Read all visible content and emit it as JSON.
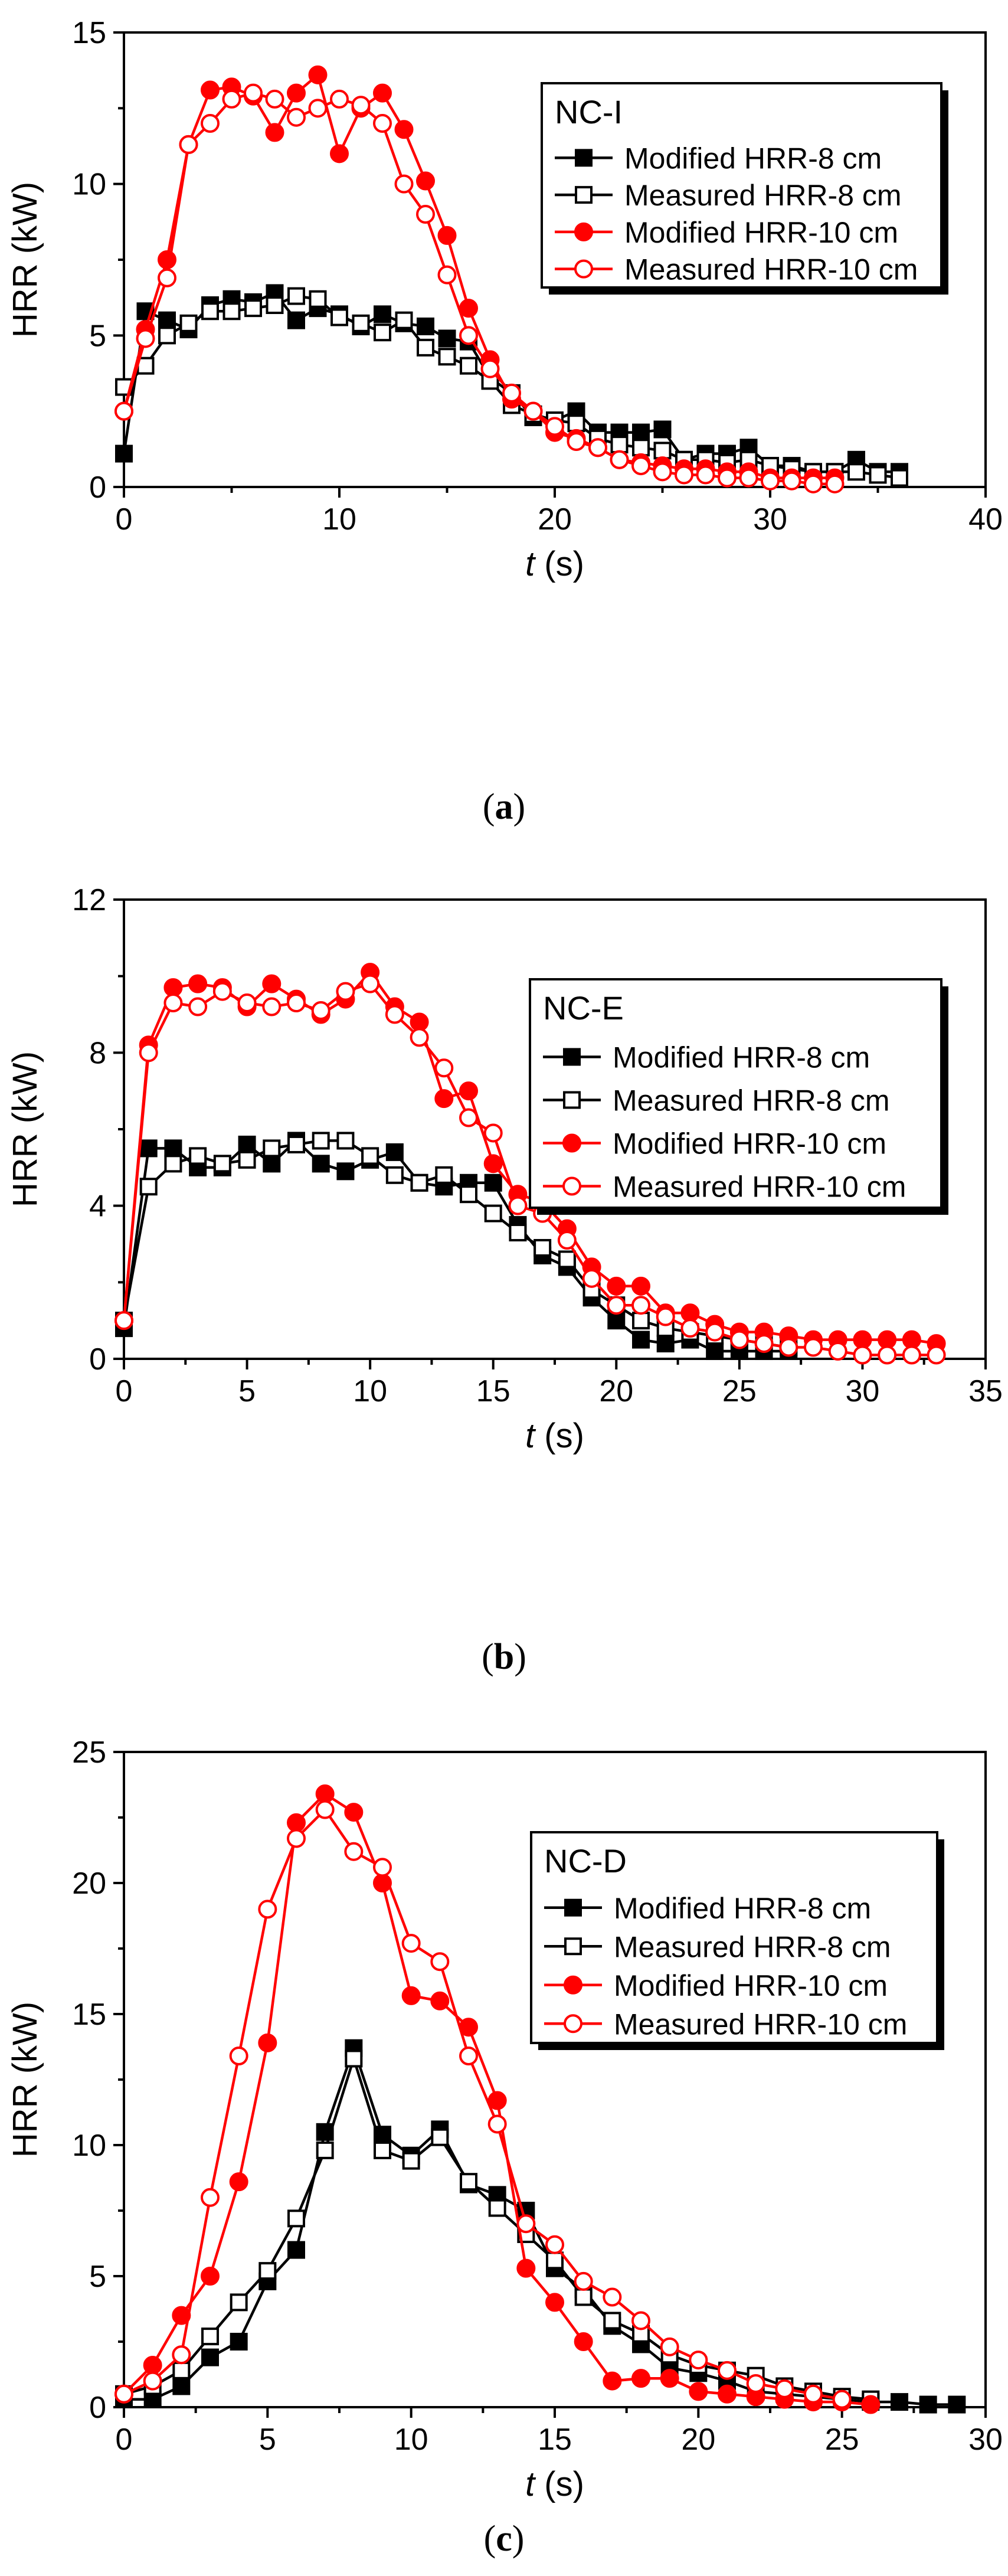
{
  "colors": {
    "black": "#000000",
    "red": "#ff0000"
  },
  "chart_data": [
    {
      "type": "line",
      "panel_label": "a",
      "legend_title": "NC-I",
      "legend_position": "top-right",
      "xlabel_var": "t",
      "xlabel_unit": " (s)",
      "ylabel": "HRR (kW)",
      "xlim": [
        0,
        40
      ],
      "ylim": [
        0,
        15
      ],
      "xticks": [
        0,
        10,
        20,
        30,
        40
      ],
      "yticks": [
        0,
        5,
        10,
        15
      ],
      "grid": false,
      "series": [
        {
          "name": "Modified HRR-8 cm",
          "color": "#000000",
          "marker": "square-filled",
          "x": [
            0,
            1,
            2,
            3,
            4,
            5,
            6,
            7,
            8,
            9,
            10,
            11,
            12,
            13,
            14,
            15,
            16,
            17,
            18,
            19,
            20,
            21,
            22,
            23,
            24,
            25,
            26,
            27,
            28,
            29,
            30,
            31,
            32,
            33,
            34,
            35,
            36
          ],
          "y": [
            1.1,
            5.8,
            5.5,
            5.2,
            6.0,
            6.2,
            6.1,
            6.4,
            5.5,
            5.9,
            5.7,
            5.3,
            5.7,
            5.4,
            5.3,
            4.9,
            4.8,
            3.6,
            3.1,
            2.3,
            2.2,
            2.5,
            1.8,
            1.8,
            1.8,
            1.9,
            0.9,
            1.1,
            1.1,
            1.3,
            0.7,
            0.7,
            0.5,
            0.5,
            0.9,
            0.5,
            0.5
          ]
        },
        {
          "name": "Measured HRR-8 cm",
          "color": "#000000",
          "marker": "square-open",
          "x": [
            0,
            1,
            2,
            3,
            4,
            5,
            6,
            7,
            8,
            9,
            10,
            11,
            12,
            13,
            14,
            15,
            16,
            17,
            18,
            19,
            20,
            21,
            22,
            23,
            24,
            25,
            26,
            27,
            28,
            29,
            30,
            31,
            32,
            33,
            34,
            35,
            36
          ],
          "y": [
            3.3,
            4.0,
            5.0,
            5.4,
            5.8,
            5.8,
            5.9,
            6.0,
            6.3,
            6.2,
            5.6,
            5.4,
            5.1,
            5.5,
            4.6,
            4.3,
            4.0,
            3.5,
            2.7,
            2.4,
            2.2,
            2.1,
            1.6,
            1.4,
            1.3,
            1.2,
            0.9,
            0.9,
            0.8,
            0.9,
            0.7,
            0.6,
            0.5,
            0.5,
            0.5,
            0.4,
            0.3
          ]
        },
        {
          "name": "Modified HRR-10 cm",
          "color": "#ff0000",
          "marker": "circle-filled",
          "x": [
            0,
            1,
            2,
            3,
            4,
            5,
            6,
            7,
            8,
            9,
            10,
            11,
            12,
            13,
            14,
            15,
            16,
            17,
            18,
            19,
            20,
            21,
            22,
            23,
            24,
            25,
            26,
            27,
            28,
            29,
            30,
            31,
            32,
            33
          ],
          "y": [
            2.5,
            5.2,
            7.5,
            11.3,
            13.1,
            13.2,
            12.9,
            11.7,
            13.0,
            13.6,
            11.0,
            12.5,
            13.0,
            11.8,
            10.1,
            8.3,
            5.9,
            4.2,
            2.9,
            2.5,
            1.8,
            1.6,
            1.3,
            0.9,
            0.8,
            0.7,
            0.6,
            0.6,
            0.5,
            0.5,
            0.3,
            0.3,
            0.3,
            0.3
          ]
        },
        {
          "name": "Measured HRR-10 cm",
          "color": "#ff0000",
          "marker": "circle-open",
          "x": [
            0,
            1,
            2,
            3,
            4,
            5,
            6,
            7,
            8,
            9,
            10,
            11,
            12,
            13,
            14,
            15,
            16,
            17,
            18,
            19,
            20,
            21,
            22,
            23,
            24,
            25,
            26,
            27,
            28,
            29,
            30,
            31,
            32,
            33
          ],
          "y": [
            2.5,
            4.9,
            6.9,
            11.3,
            12.0,
            12.8,
            13.0,
            12.8,
            12.2,
            12.5,
            12.8,
            12.6,
            12.0,
            10.0,
            9.0,
            7.0,
            5.0,
            3.9,
            3.1,
            2.5,
            2.0,
            1.5,
            1.3,
            0.9,
            0.7,
            0.5,
            0.4,
            0.4,
            0.3,
            0.3,
            0.2,
            0.2,
            0.1,
            0.1
          ]
        }
      ]
    },
    {
      "type": "line",
      "panel_label": "b",
      "legend_title": "NC-E",
      "legend_position": "top-right",
      "xlabel_var": "t",
      "xlabel_unit": " (s)",
      "ylabel": "HRR (kW)",
      "xlim": [
        0,
        35
      ],
      "ylim": [
        0,
        12
      ],
      "xticks": [
        0,
        5,
        10,
        15,
        20,
        25,
        30,
        35
      ],
      "yticks": [
        0,
        4,
        8,
        12
      ],
      "grid": false,
      "series": [
        {
          "name": "Modified HRR-8 cm",
          "color": "#000000",
          "marker": "square-filled",
          "x": [
            0,
            1,
            2,
            3,
            4,
            5,
            6,
            7,
            8,
            9,
            10,
            11,
            12,
            13,
            14,
            15,
            16,
            17,
            18,
            19,
            20,
            21,
            22,
            23,
            24,
            25,
            26,
            27
          ],
          "y": [
            0.8,
            5.5,
            5.5,
            5.0,
            5.0,
            5.6,
            5.1,
            5.7,
            5.1,
            4.9,
            5.2,
            5.4,
            4.6,
            4.5,
            4.6,
            4.6,
            3.5,
            2.7,
            2.4,
            1.6,
            1.0,
            0.5,
            0.4,
            0.5,
            0.2,
            0.2,
            0.2,
            0.2
          ]
        },
        {
          "name": "Measured HRR-8 cm",
          "color": "#000000",
          "marker": "square-open",
          "x": [
            0,
            1,
            2,
            3,
            4,
            5,
            6,
            7,
            8,
            9,
            10,
            11,
            12,
            13,
            14,
            15,
            16,
            17,
            18,
            19,
            20,
            21,
            22,
            23,
            24,
            25,
            26,
            27
          ],
          "y": [
            1.0,
            4.5,
            5.1,
            5.3,
            5.1,
            5.2,
            5.5,
            5.6,
            5.7,
            5.7,
            5.3,
            4.8,
            4.6,
            4.8,
            4.3,
            3.8,
            3.3,
            2.9,
            2.6,
            1.8,
            1.4,
            1.0,
            0.8,
            0.7,
            0.6,
            0.5,
            0.4,
            0.3
          ]
        },
        {
          "name": "Modified HRR-10 cm",
          "color": "#ff0000",
          "marker": "circle-filled",
          "x": [
            0,
            1,
            2,
            3,
            4,
            5,
            6,
            7,
            8,
            9,
            10,
            11,
            12,
            13,
            14,
            15,
            16,
            17,
            18,
            19,
            20,
            21,
            22,
            23,
            24,
            25,
            26,
            27,
            28,
            29,
            30,
            31,
            32,
            33
          ],
          "y": [
            1.0,
            8.2,
            9.7,
            9.8,
            9.7,
            9.2,
            9.8,
            9.4,
            9.0,
            9.4,
            10.1,
            9.2,
            8.8,
            6.8,
            7.0,
            5.1,
            4.3,
            4.1,
            3.4,
            2.4,
            1.9,
            1.9,
            1.2,
            1.2,
            0.9,
            0.7,
            0.7,
            0.6,
            0.5,
            0.5,
            0.5,
            0.5,
            0.5,
            0.4
          ]
        },
        {
          "name": "Measured HRR-10 cm",
          "color": "#ff0000",
          "marker": "circle-open",
          "x": [
            0,
            1,
            2,
            3,
            4,
            5,
            6,
            7,
            8,
            9,
            10,
            11,
            12,
            13,
            14,
            15,
            16,
            17,
            18,
            19,
            20,
            21,
            22,
            23,
            24,
            25,
            26,
            27,
            28,
            29,
            30,
            31,
            32,
            33
          ],
          "y": [
            1.0,
            8.0,
            9.3,
            9.2,
            9.6,
            9.3,
            9.2,
            9.3,
            9.1,
            9.6,
            9.8,
            9.0,
            8.4,
            7.6,
            6.3,
            5.9,
            4.0,
            3.8,
            3.1,
            2.1,
            1.4,
            1.4,
            1.1,
            0.8,
            0.7,
            0.5,
            0.4,
            0.3,
            0.3,
            0.2,
            0.1,
            0.1,
            0.1,
            0.1
          ]
        }
      ]
    },
    {
      "type": "line",
      "panel_label": "c",
      "legend_title": "NC-D",
      "legend_position": "top-right",
      "xlabel_var": "t",
      "xlabel_unit": " (s)",
      "ylabel": "HRR (kW)",
      "xlim": [
        0,
        30
      ],
      "ylim": [
        0,
        25
      ],
      "xticks": [
        0,
        5,
        10,
        15,
        20,
        25,
        30
      ],
      "yticks": [
        0,
        5,
        10,
        15,
        20,
        25
      ],
      "grid": false,
      "series": [
        {
          "name": "Modified HRR-8 cm",
          "color": "#000000",
          "marker": "square-filled",
          "x": [
            0,
            1,
            2,
            3,
            4,
            5,
            6,
            7,
            8,
            9,
            10,
            11,
            12,
            13,
            14,
            15,
            16,
            17,
            18,
            19,
            20,
            21,
            22,
            23,
            24,
            25,
            26,
            27,
            28,
            29
          ],
          "y": [
            0.3,
            0.3,
            0.8,
            1.9,
            2.5,
            4.8,
            6.0,
            10.5,
            13.7,
            10.4,
            9.6,
            10.6,
            8.5,
            8.1,
            7.5,
            5.3,
            4.5,
            3.1,
            2.4,
            1.5,
            1.3,
            1.0,
            0.6,
            0.5,
            0.4,
            0.3,
            0.2,
            0.2,
            0.1,
            0.1
          ]
        },
        {
          "name": "Measured HRR-8 cm",
          "color": "#000000",
          "marker": "square-open",
          "x": [
            0,
            1,
            2,
            3,
            4,
            5,
            6,
            7,
            8,
            9,
            10,
            11,
            12,
            13,
            14,
            15,
            16,
            17,
            18,
            19,
            20,
            21,
            22,
            23,
            24,
            25,
            26
          ],
          "y": [
            0.5,
            0.8,
            1.4,
            2.7,
            4.0,
            5.2,
            7.2,
            9.8,
            13.3,
            9.8,
            9.4,
            10.3,
            8.6,
            7.6,
            6.6,
            5.6,
            4.2,
            3.3,
            2.8,
            2.0,
            1.6,
            1.4,
            1.2,
            0.8,
            0.6,
            0.4,
            0.3
          ]
        },
        {
          "name": "Modified HRR-10 cm",
          "color": "#ff0000",
          "marker": "circle-filled",
          "x": [
            0,
            1,
            2,
            3,
            4,
            5,
            6,
            7,
            8,
            9,
            10,
            11,
            12,
            13,
            14,
            15,
            16,
            17,
            18,
            19,
            20,
            21,
            22,
            23,
            24,
            25,
            26
          ],
          "y": [
            0.5,
            1.6,
            3.5,
            5.0,
            8.6,
            13.9,
            22.3,
            23.4,
            22.7,
            20.0,
            15.7,
            15.5,
            14.5,
            11.7,
            5.3,
            4.0,
            2.5,
            1.0,
            1.1,
            1.1,
            0.6,
            0.5,
            0.4,
            0.3,
            0.2,
            0.2,
            0.1
          ]
        },
        {
          "name": "Measured HRR-10 cm",
          "color": "#ff0000",
          "marker": "circle-open",
          "x": [
            0,
            1,
            2,
            3,
            4,
            5,
            6,
            7,
            8,
            9,
            10,
            11,
            12,
            13,
            14,
            15,
            16,
            17,
            18,
            19,
            20,
            21,
            22,
            23,
            24,
            25
          ],
          "y": [
            0.5,
            1.0,
            2.0,
            8.0,
            13.4,
            19.0,
            21.7,
            22.8,
            21.2,
            20.6,
            17.7,
            17.0,
            13.4,
            10.8,
            7.0,
            6.2,
            4.8,
            4.2,
            3.3,
            2.3,
            1.8,
            1.4,
            0.9,
            0.7,
            0.5,
            0.3
          ]
        }
      ]
    }
  ]
}
